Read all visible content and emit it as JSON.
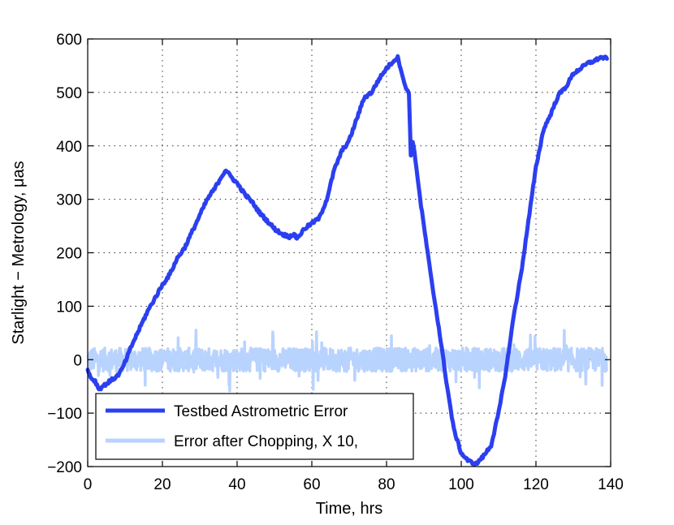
{
  "chart_data": {
    "type": "line",
    "title": "",
    "xlabel": "Time,   hrs",
    "ylabel": "Starlight − Metrology,  μas",
    "xlim": [
      0,
      140
    ],
    "ylim": [
      -200,
      600
    ],
    "xticks": [
      0,
      20,
      40,
      60,
      80,
      100,
      120,
      140
    ],
    "yticks": [
      -200,
      -100,
      0,
      100,
      200,
      300,
      400,
      500,
      600
    ],
    "xtick_labels": [
      "0",
      "20",
      "40",
      "60",
      "80",
      "100",
      "120",
      "140"
    ],
    "ytick_labels": [
      "−200",
      "−100",
      "0",
      "100",
      "200",
      "300",
      "400",
      "500",
      "600"
    ],
    "grid": true,
    "legend_position": "bottom-left",
    "series": [
      {
        "name": "Testbed Astrometric Error",
        "color": "#2b3ff0",
        "x": [
          0,
          1,
          2,
          3,
          4,
          5,
          6,
          7,
          8,
          9,
          10,
          12,
          14,
          16,
          18,
          20,
          22,
          24,
          26,
          28,
          30,
          32,
          34,
          36,
          37,
          38,
          40,
          42,
          44,
          46,
          48,
          50,
          52,
          54,
          55,
          56,
          57,
          58,
          60,
          62,
          64,
          66,
          68,
          70,
          72,
          74,
          76,
          78,
          80,
          82,
          83,
          84,
          85,
          86,
          86.5,
          87,
          88,
          89,
          90,
          92,
          94,
          96,
          98,
          100,
          102,
          104,
          106,
          108,
          110,
          112,
          114,
          116,
          118,
          120,
          122,
          124,
          126,
          128,
          130,
          132,
          134,
          136,
          137,
          138,
          139
        ],
        "y": [
          -20,
          -35,
          -40,
          -55,
          -50,
          -45,
          -40,
          -35,
          -30,
          -20,
          -5,
          30,
          60,
          90,
          115,
          140,
          160,
          190,
          210,
          240,
          270,
          300,
          320,
          345,
          355,
          345,
          330,
          310,
          295,
          275,
          260,
          245,
          235,
          230,
          235,
          228,
          235,
          245,
          255,
          265,
          300,
          355,
          390,
          410,
          450,
          490,
          500,
          525,
          545,
          560,
          565,
          540,
          510,
          500,
          380,
          410,
          360,
          300,
          250,
          150,
          60,
          -40,
          -130,
          -175,
          -190,
          -195,
          -180,
          -160,
          -100,
          -20,
          80,
          160,
          260,
          360,
          430,
          460,
          495,
          510,
          535,
          545,
          555,
          560,
          565,
          565,
          563
        ]
      },
      {
        "name": "Error after Chopping, X 10,",
        "color": "#b9d3ff",
        "x_range": [
          0,
          139
        ],
        "amplitude": 22,
        "spike_amplitude": 60,
        "samples": 1400
      }
    ]
  }
}
